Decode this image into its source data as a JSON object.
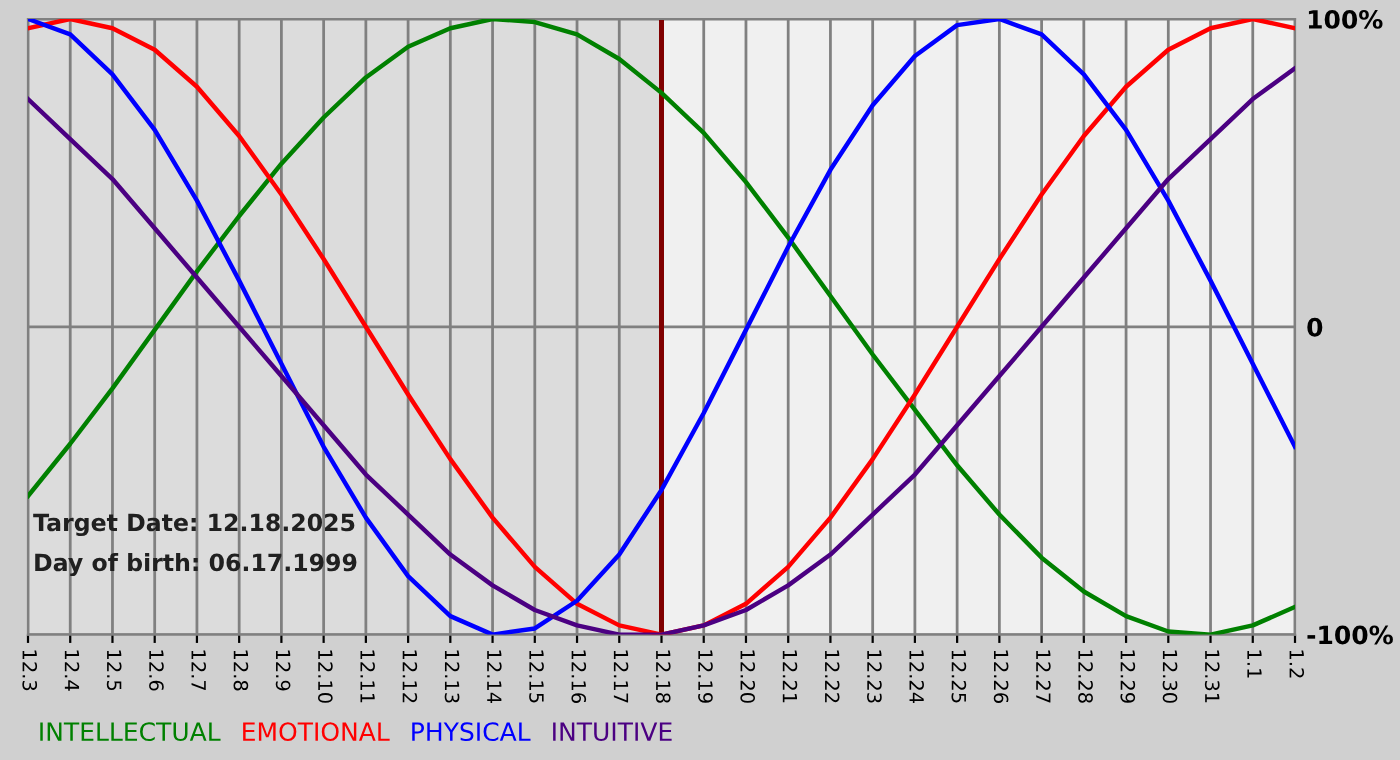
{
  "chart_data": {
    "type": "line",
    "categories": [
      "12.3",
      "12.4",
      "12.5",
      "12.6",
      "12.7",
      "12.8",
      "12.9",
      "12.10",
      "12.11",
      "12.12",
      "12.13",
      "12.14",
      "12.15",
      "12.16",
      "12.17",
      "12.18",
      "12.19",
      "12.20",
      "12.21",
      "12.22",
      "12.23",
      "12.24",
      "12.25",
      "12.26",
      "12.27",
      "12.28",
      "12.29",
      "12.30",
      "12.31",
      "1.1",
      "1.2"
    ],
    "series": [
      {
        "name": "INTELLECTUAL",
        "color": "#008000",
        "values": [
          -55,
          -38,
          -20,
          -1,
          18,
          36,
          53,
          68,
          81,
          91,
          97,
          100,
          99,
          95,
          87,
          76,
          63,
          47,
          29,
          10,
          -9,
          -27,
          -45,
          -61,
          -75,
          -86,
          -94,
          -99,
          -100,
          -97,
          -91
        ]
      },
      {
        "name": "EMOTIONAL",
        "color": "#ff0000",
        "values": [
          97,
          100,
          97,
          90,
          78,
          62,
          43,
          22,
          0,
          -22,
          -43,
          -62,
          -78,
          -90,
          -97,
          -100,
          -97,
          -90,
          -78,
          -62,
          -43,
          -22,
          0,
          22,
          43,
          62,
          78,
          90,
          97,
          100,
          97
        ]
      },
      {
        "name": "PHYSICAL",
        "color": "#0000ff",
        "values": [
          100,
          95,
          82,
          64,
          41,
          15,
          -12,
          -39,
          -62,
          -81,
          -94,
          -100,
          -98,
          -89,
          -74,
          -53,
          -28,
          -1,
          26,
          51,
          72,
          88,
          98,
          100,
          95,
          82,
          64,
          41,
          15,
          -12,
          -39
        ]
      },
      {
        "name": "INTUITIVE",
        "color": "#4b0082",
        "values": [
          74,
          61,
          48,
          32,
          16,
          0,
          -16,
          -32,
          -48,
          -61,
          -74,
          -84,
          -92,
          -97,
          -100,
          -100,
          -97,
          -92,
          -84,
          -74,
          -61,
          -48,
          -32,
          -16,
          0,
          16,
          32,
          48,
          61,
          74,
          84
        ]
      }
    ],
    "ylim": [
      -100,
      100
    ],
    "yticks": [
      {
        "value": 100,
        "label": "100%"
      },
      0,
      {
        "value": -100,
        "label": "-100%"
      }
    ],
    "ref_lines": [
      {
        "axis": "x",
        "value": "12.18",
        "color": "#800000"
      }
    ],
    "bands": [
      {
        "axis": "x",
        "from": "12.3",
        "to": "12.18",
        "color": "#dcdcdc"
      }
    ],
    "annotations": [
      "Target Date: 12.18.2025",
      "Day of birth: 06.17.1999"
    ],
    "grid": true,
    "legend": "bottom",
    "marker": "none",
    "line_style": "solid"
  }
}
